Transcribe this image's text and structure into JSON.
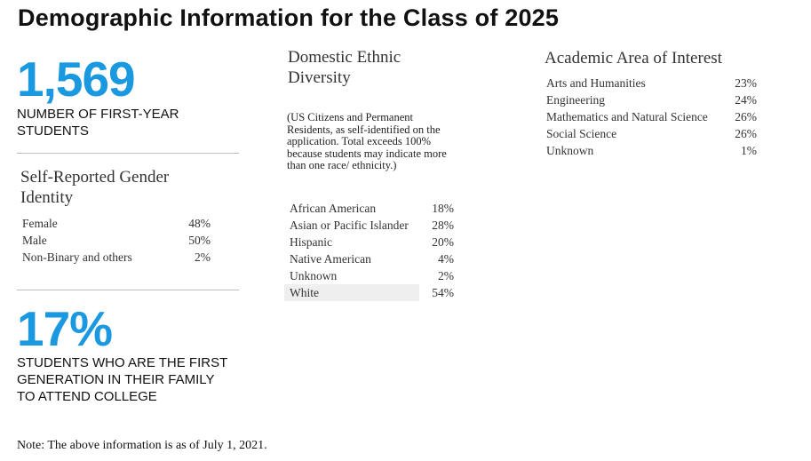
{
  "title": "Demographic Information for the Class of 2025",
  "first_year": {
    "number": "1,569",
    "caption": "NUMBER OF FIRST-YEAR STUDENTS"
  },
  "gender": {
    "heading": "Self-Reported Gender Identity",
    "rows": [
      {
        "label": "Female",
        "value": "48%"
      },
      {
        "label": "Male",
        "value": "50%"
      },
      {
        "label": "Non-Binary and others",
        "value": "2%"
      }
    ]
  },
  "first_gen": {
    "number": "17%",
    "caption": "STUDENTS WHO ARE THE FIRST GENERATION IN THEIR FAMILY TO ATTEND COLLEGE"
  },
  "ethnic": {
    "heading": "Domestic Ethnic Diversity",
    "note": "(US Citizens and Permanent Residents, as self-identified on the application. Total exceeds 100% because students may indicate more than one race/ ethnicity.)",
    "rows": [
      {
        "label": "African American",
        "value": "18%"
      },
      {
        "label": "Asian or Pacific Islander",
        "value": "28%"
      },
      {
        "label": "Hispanic",
        "value": "20%"
      },
      {
        "label": "Native American",
        "value": "4%"
      },
      {
        "label": "Unknown",
        "value": "2%"
      },
      {
        "label": "White",
        "value": "54%"
      }
    ]
  },
  "academic": {
    "heading": "Academic Area of Interest",
    "rows": [
      {
        "label": "Arts and Humanities",
        "value": "23%"
      },
      {
        "label": "Engineering",
        "value": "24%"
      },
      {
        "label": "Mathematics and Natural Science",
        "value": "26%"
      },
      {
        "label": "Social Science",
        "value": "26%"
      },
      {
        "label": "Unknown",
        "value": "1%"
      }
    ]
  },
  "footnote": "Note: The above information is as of July 1, 2021.",
  "colors": {
    "accent": "#1a98e0",
    "rule": "#bdbdbd",
    "row_highlight": "#efefef"
  }
}
